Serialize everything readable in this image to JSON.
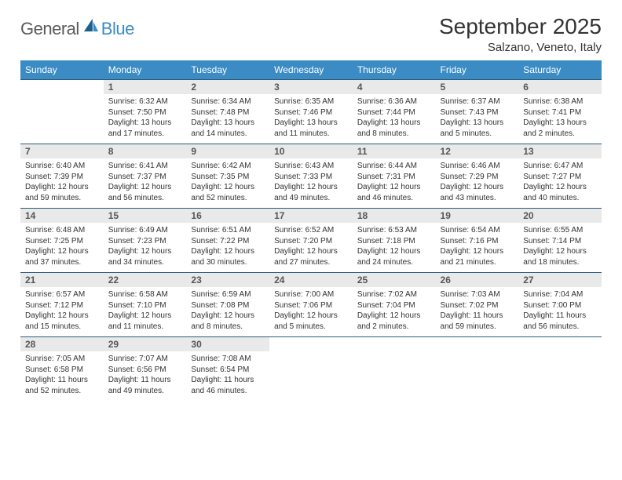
{
  "logo": {
    "part1": "General",
    "part2": "Blue"
  },
  "title": "September 2025",
  "location": "Salzano, Veneto, Italy",
  "headers": [
    "Sunday",
    "Monday",
    "Tuesday",
    "Wednesday",
    "Thursday",
    "Friday",
    "Saturday"
  ],
  "colors": {
    "header_bg": "#3b8bc4",
    "header_text": "#ffffff",
    "daynum_bg": "#e9e9e9",
    "border": "#2a5a7a",
    "text": "#333333"
  },
  "weeks": [
    [
      {
        "num": "",
        "lines": [
          "",
          "",
          "",
          ""
        ]
      },
      {
        "num": "1",
        "lines": [
          "Sunrise: 6:32 AM",
          "Sunset: 7:50 PM",
          "Daylight: 13 hours",
          "and 17 minutes."
        ]
      },
      {
        "num": "2",
        "lines": [
          "Sunrise: 6:34 AM",
          "Sunset: 7:48 PM",
          "Daylight: 13 hours",
          "and 14 minutes."
        ]
      },
      {
        "num": "3",
        "lines": [
          "Sunrise: 6:35 AM",
          "Sunset: 7:46 PM",
          "Daylight: 13 hours",
          "and 11 minutes."
        ]
      },
      {
        "num": "4",
        "lines": [
          "Sunrise: 6:36 AM",
          "Sunset: 7:44 PM",
          "Daylight: 13 hours",
          "and 8 minutes."
        ]
      },
      {
        "num": "5",
        "lines": [
          "Sunrise: 6:37 AM",
          "Sunset: 7:43 PM",
          "Daylight: 13 hours",
          "and 5 minutes."
        ]
      },
      {
        "num": "6",
        "lines": [
          "Sunrise: 6:38 AM",
          "Sunset: 7:41 PM",
          "Daylight: 13 hours",
          "and 2 minutes."
        ]
      }
    ],
    [
      {
        "num": "7",
        "lines": [
          "Sunrise: 6:40 AM",
          "Sunset: 7:39 PM",
          "Daylight: 12 hours",
          "and 59 minutes."
        ]
      },
      {
        "num": "8",
        "lines": [
          "Sunrise: 6:41 AM",
          "Sunset: 7:37 PM",
          "Daylight: 12 hours",
          "and 56 minutes."
        ]
      },
      {
        "num": "9",
        "lines": [
          "Sunrise: 6:42 AM",
          "Sunset: 7:35 PM",
          "Daylight: 12 hours",
          "and 52 minutes."
        ]
      },
      {
        "num": "10",
        "lines": [
          "Sunrise: 6:43 AM",
          "Sunset: 7:33 PM",
          "Daylight: 12 hours",
          "and 49 minutes."
        ]
      },
      {
        "num": "11",
        "lines": [
          "Sunrise: 6:44 AM",
          "Sunset: 7:31 PM",
          "Daylight: 12 hours",
          "and 46 minutes."
        ]
      },
      {
        "num": "12",
        "lines": [
          "Sunrise: 6:46 AM",
          "Sunset: 7:29 PM",
          "Daylight: 12 hours",
          "and 43 minutes."
        ]
      },
      {
        "num": "13",
        "lines": [
          "Sunrise: 6:47 AM",
          "Sunset: 7:27 PM",
          "Daylight: 12 hours",
          "and 40 minutes."
        ]
      }
    ],
    [
      {
        "num": "14",
        "lines": [
          "Sunrise: 6:48 AM",
          "Sunset: 7:25 PM",
          "Daylight: 12 hours",
          "and 37 minutes."
        ]
      },
      {
        "num": "15",
        "lines": [
          "Sunrise: 6:49 AM",
          "Sunset: 7:23 PM",
          "Daylight: 12 hours",
          "and 34 minutes."
        ]
      },
      {
        "num": "16",
        "lines": [
          "Sunrise: 6:51 AM",
          "Sunset: 7:22 PM",
          "Daylight: 12 hours",
          "and 30 minutes."
        ]
      },
      {
        "num": "17",
        "lines": [
          "Sunrise: 6:52 AM",
          "Sunset: 7:20 PM",
          "Daylight: 12 hours",
          "and 27 minutes."
        ]
      },
      {
        "num": "18",
        "lines": [
          "Sunrise: 6:53 AM",
          "Sunset: 7:18 PM",
          "Daylight: 12 hours",
          "and 24 minutes."
        ]
      },
      {
        "num": "19",
        "lines": [
          "Sunrise: 6:54 AM",
          "Sunset: 7:16 PM",
          "Daylight: 12 hours",
          "and 21 minutes."
        ]
      },
      {
        "num": "20",
        "lines": [
          "Sunrise: 6:55 AM",
          "Sunset: 7:14 PM",
          "Daylight: 12 hours",
          "and 18 minutes."
        ]
      }
    ],
    [
      {
        "num": "21",
        "lines": [
          "Sunrise: 6:57 AM",
          "Sunset: 7:12 PM",
          "Daylight: 12 hours",
          "and 15 minutes."
        ]
      },
      {
        "num": "22",
        "lines": [
          "Sunrise: 6:58 AM",
          "Sunset: 7:10 PM",
          "Daylight: 12 hours",
          "and 11 minutes."
        ]
      },
      {
        "num": "23",
        "lines": [
          "Sunrise: 6:59 AM",
          "Sunset: 7:08 PM",
          "Daylight: 12 hours",
          "and 8 minutes."
        ]
      },
      {
        "num": "24",
        "lines": [
          "Sunrise: 7:00 AM",
          "Sunset: 7:06 PM",
          "Daylight: 12 hours",
          "and 5 minutes."
        ]
      },
      {
        "num": "25",
        "lines": [
          "Sunrise: 7:02 AM",
          "Sunset: 7:04 PM",
          "Daylight: 12 hours",
          "and 2 minutes."
        ]
      },
      {
        "num": "26",
        "lines": [
          "Sunrise: 7:03 AM",
          "Sunset: 7:02 PM",
          "Daylight: 11 hours",
          "and 59 minutes."
        ]
      },
      {
        "num": "27",
        "lines": [
          "Sunrise: 7:04 AM",
          "Sunset: 7:00 PM",
          "Daylight: 11 hours",
          "and 56 minutes."
        ]
      }
    ],
    [
      {
        "num": "28",
        "lines": [
          "Sunrise: 7:05 AM",
          "Sunset: 6:58 PM",
          "Daylight: 11 hours",
          "and 52 minutes."
        ]
      },
      {
        "num": "29",
        "lines": [
          "Sunrise: 7:07 AM",
          "Sunset: 6:56 PM",
          "Daylight: 11 hours",
          "and 49 minutes."
        ]
      },
      {
        "num": "30",
        "lines": [
          "Sunrise: 7:08 AM",
          "Sunset: 6:54 PM",
          "Daylight: 11 hours",
          "and 46 minutes."
        ]
      },
      {
        "num": "",
        "lines": [
          "",
          "",
          "",
          ""
        ]
      },
      {
        "num": "",
        "lines": [
          "",
          "",
          "",
          ""
        ]
      },
      {
        "num": "",
        "lines": [
          "",
          "",
          "",
          ""
        ]
      },
      {
        "num": "",
        "lines": [
          "",
          "",
          "",
          ""
        ]
      }
    ]
  ]
}
